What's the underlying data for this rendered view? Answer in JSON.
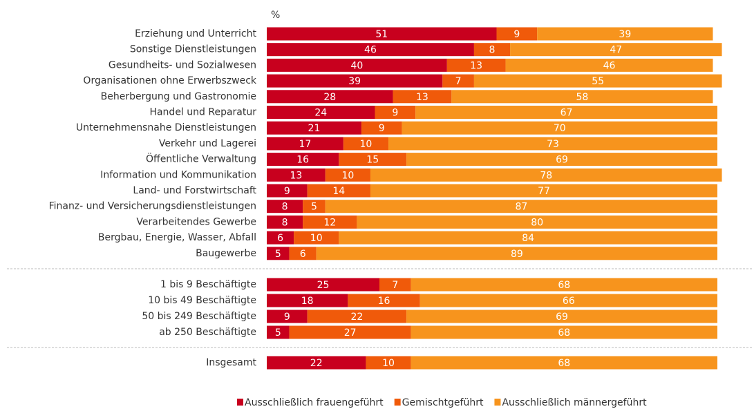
{
  "chart_data": {
    "type": "stacked-bar-horizontal",
    "unit_label": "%",
    "categories": [
      "Erziehung und Unterricht",
      "Sonstige Dienstleistungen",
      "Gesundheits- und Sozialwesen",
      "Organisationen ohne Erwerbszweck",
      "Beherbergung und Gastronomie",
      "Handel und Reparatur",
      "Unternehmensnahe Dienstleistungen",
      "Verkehr und Lagerei",
      "Öffentliche Verwaltung",
      "Information und Kommunikation",
      "Land- und Forstwirtschaft",
      "Finanz- und Versicherungsdienstleistungen",
      "Verarbeitendes Gewerbe",
      "Bergbau, Energie, Wasser, Abfall",
      "Baugewerbe",
      "1 bis  9 Beschäftigte",
      "10 bis  49 Beschäftigte",
      "50 bis 249 Beschäftigte",
      "ab 250 Beschäftigte",
      "Insgesamt"
    ],
    "series": [
      {
        "name": "Ausschließlich frauengeführt",
        "color": "#c8001e",
        "values": [
          51,
          46,
          40,
          39,
          28,
          24,
          21,
          17,
          16,
          13,
          9,
          8,
          8,
          6,
          5,
          25,
          18,
          9,
          5,
          22
        ]
      },
      {
        "name": "Gemischtgeführt",
        "color": "#f05a0a",
        "values": [
          9,
          8,
          13,
          7,
          13,
          9,
          9,
          10,
          15,
          10,
          14,
          5,
          12,
          10,
          6,
          7,
          16,
          22,
          27,
          10
        ]
      },
      {
        "name": "Ausschließlich männergeführt",
        "color": "#f7941d",
        "values": [
          39,
          47,
          46,
          55,
          58,
          67,
          70,
          73,
          69,
          78,
          77,
          87,
          80,
          84,
          89,
          68,
          66,
          69,
          68,
          68
        ]
      }
    ],
    "xlim": [
      0,
      100
    ],
    "legend": "bottom"
  }
}
